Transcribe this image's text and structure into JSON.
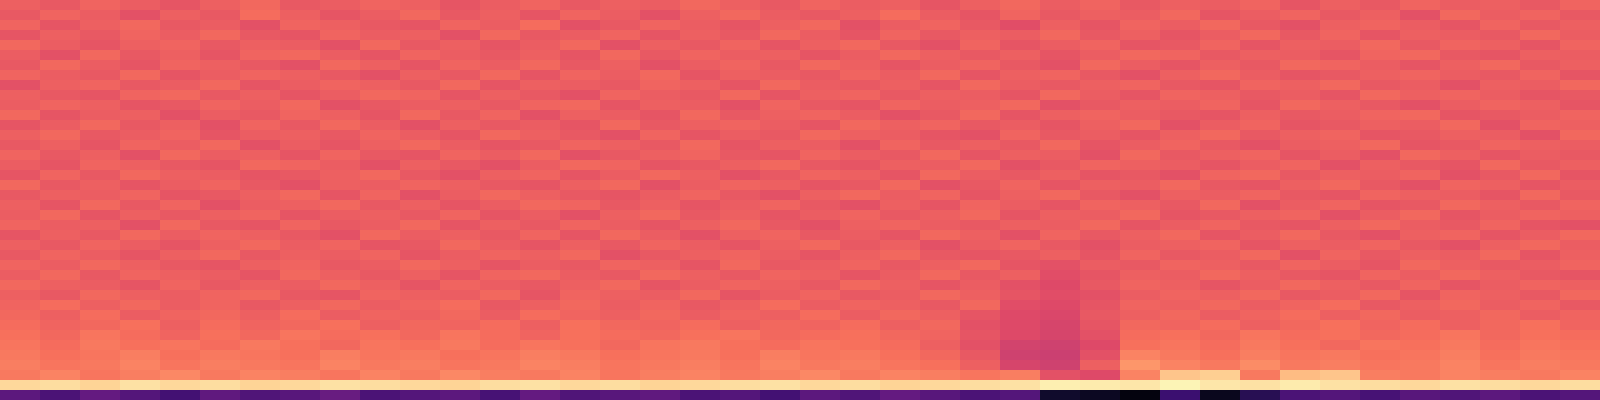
{
  "chart_data": {
    "type": "heatmap",
    "color": "magma",
    "tick_labels": false,
    "color_range": [
      0,
      100
    ],
    "cells": [
      [
        66,
        64,
        67,
        65,
        63,
        66,
        68,
        64,
        65,
        67,
        66,
        63,
        65,
        67,
        64,
        66,
        65,
        68,
        66,
        64,
        67,
        65,
        66,
        63,
        66,
        68,
        65,
        67,
        64,
        66,
        65,
        67,
        63,
        66,
        64,
        67,
        65,
        66,
        64,
        67
      ],
      [
        64,
        67,
        65,
        62,
        66,
        64,
        69,
        66,
        63,
        65,
        68,
        64,
        66,
        63,
        67,
        65,
        62,
        66,
        68,
        65,
        64,
        66,
        69,
        65,
        63,
        67,
        64,
        66,
        65,
        68,
        63,
        65,
        67,
        64,
        66,
        62,
        68,
        65,
        67,
        64
      ],
      [
        67,
        63,
        66,
        68,
        64,
        65,
        62,
        67,
        66,
        64,
        63,
        67,
        65,
        69,
        62,
        64,
        67,
        65,
        63,
        66,
        68,
        62,
        65,
        67,
        64,
        61,
        66,
        63,
        67,
        65,
        68,
        64,
        62,
        66,
        67,
        65,
        63,
        67,
        64,
        66
      ],
      [
        63,
        66,
        64,
        67,
        65,
        68,
        64,
        63,
        67,
        65,
        66,
        62,
        68,
        64,
        65,
        67,
        63,
        66,
        64,
        68,
        65,
        63,
        67,
        64,
        66,
        65,
        68,
        64,
        66,
        63,
        65,
        68,
        64,
        67,
        63,
        66,
        65,
        64,
        68,
        65
      ],
      [
        68,
        65,
        63,
        66,
        67,
        64,
        66,
        65,
        62,
        68,
        64,
        66,
        63,
        65,
        68,
        62,
        66,
        64,
        67,
        63,
        66,
        68,
        64,
        62,
        67,
        63,
        65,
        67,
        63,
        64,
        67,
        63,
        66,
        65,
        68,
        64,
        67,
        66,
        63,
        67
      ],
      [
        65,
        62,
        68,
        64,
        66,
        63,
        67,
        68,
        65,
        63,
        67,
        65,
        64,
        66,
        63,
        68,
        64,
        67,
        65,
        66,
        63,
        65,
        68,
        66,
        64,
        66,
        63,
        65,
        68,
        67,
        64,
        66,
        65,
        63,
        67,
        68,
        64,
        63,
        66,
        65
      ],
      [
        64,
        68,
        65,
        63,
        67,
        66,
        64,
        62,
        68,
        66,
        63,
        67,
        65,
        68,
        64,
        66,
        62,
        65,
        67,
        64,
        68,
        66,
        63,
        65,
        67,
        64,
        62,
        68,
        65,
        63,
        66,
        64,
        68,
        67,
        65,
        63,
        66,
        68,
        64,
        66
      ],
      [
        67,
        65,
        64,
        68,
        63,
        65,
        67,
        66,
        64,
        62,
        66,
        64,
        68,
        63,
        67,
        65,
        68,
        63,
        66,
        65,
        64,
        67,
        65,
        68,
        63,
        66,
        67,
        64,
        62,
        66,
        68,
        65,
        63,
        64,
        66,
        67,
        65,
        64,
        67,
        63
      ],
      [
        62,
        66,
        67,
        64,
        65,
        68,
        63,
        65,
        67,
        66,
        64,
        68,
        63,
        66,
        65,
        64,
        67,
        66,
        63,
        68,
        65,
        64,
        66,
        63,
        68,
        65,
        64,
        66,
        67,
        64,
        63,
        67,
        66,
        68,
        64,
        65,
        62,
        66,
        65,
        68
      ],
      [
        66,
        64,
        63,
        67,
        68,
        64,
        66,
        63,
        65,
        68,
        67,
        63,
        66,
        64,
        62,
        67,
        65,
        64,
        68,
        63,
        66,
        67,
        64,
        66,
        65,
        63,
        68,
        65,
        63,
        67,
        66,
        64,
        65,
        63,
        68,
        66,
        67,
        65,
        63,
        64
      ],
      [
        65,
        67,
        66,
        63,
        64,
        67,
        65,
        68,
        62,
        64,
        65,
        66,
        64,
        67,
        68,
        63,
        66,
        65,
        62,
        67,
        64,
        63,
        67,
        65,
        66,
        68,
        62,
        64,
        66,
        65,
        67,
        63,
        68,
        66,
        64,
        62,
        65,
        67,
        66,
        63
      ],
      [
        68,
        63,
        65,
        66,
        62,
        65,
        64,
        67,
        66,
        63,
        68,
        64,
        67,
        62,
        66,
        65,
        63,
        68,
        64,
        66,
        67,
        65,
        62,
        64,
        68,
        63,
        66,
        67,
        65,
        64,
        63,
        66,
        64,
        65,
        67,
        68,
        63,
        64,
        65,
        67
      ],
      [
        63,
        65,
        68,
        64,
        66,
        62,
        67,
        64,
        68,
        65,
        62,
        66,
        64,
        65,
        63,
        68,
        64,
        66,
        67,
        65,
        63,
        68,
        66,
        67,
        64,
        65,
        63,
        66,
        68,
        62,
        65,
        67,
        63,
        64,
        66,
        65,
        68,
        62,
        67,
        66
      ],
      [
        66,
        68,
        64,
        65,
        67,
        63,
        65,
        66,
        64,
        67,
        65,
        63,
        68,
        66,
        64,
        62,
        67,
        63,
        65,
        64,
        68,
        66,
        65,
        63,
        62,
        67,
        64,
        65,
        63,
        66,
        68,
        64,
        66,
        67,
        63,
        64,
        66,
        65,
        62,
        68
      ],
      [
        64,
        66,
        63,
        67,
        65,
        68,
        62,
        65,
        63,
        66,
        68,
        65,
        63,
        64,
        67,
        66,
        64,
        68,
        63,
        66,
        65,
        62,
        67,
        64,
        66,
        64,
        68,
        63,
        65,
        67,
        64,
        62,
        65,
        66,
        68,
        63,
        64,
        67,
        66,
        65
      ],
      [
        67,
        64,
        66,
        62,
        68,
        65,
        66,
        63,
        67,
        64,
        63,
        67,
        65,
        68,
        62,
        64,
        66,
        67,
        64,
        63,
        67,
        65,
        64,
        68,
        63,
        66,
        65,
        62,
        68,
        64,
        66,
        67,
        63,
        65,
        62,
        68,
        66,
        63,
        65,
        64
      ],
      [
        65,
        63,
        67,
        66,
        64,
        63,
        68,
        67,
        65,
        62,
        66,
        64,
        62,
        65,
        68,
        67,
        63,
        64,
        66,
        68,
        64,
        63,
        66,
        65,
        68,
        62,
        64,
        67,
        66,
        65,
        63,
        65,
        67,
        62,
        66,
        64,
        63,
        68,
        64,
        66
      ],
      [
        63,
        67,
        64,
        68,
        66,
        65,
        63,
        64,
        66,
        68,
        64,
        62,
        66,
        67,
        63,
        65,
        68,
        66,
        62,
        64,
        67,
        66,
        63,
        68,
        65,
        64,
        66,
        63,
        64,
        62,
        67,
        68,
        64,
        66,
        65,
        67,
        62,
        64,
        68,
        63
      ],
      [
        68,
        64,
        66,
        63,
        65,
        67,
        64,
        62,
        66,
        65,
        67,
        66,
        64,
        63,
        66,
        68,
        62,
        65,
        67,
        66,
        63,
        64,
        68,
        62,
        64,
        67,
        63,
        66,
        65,
        68,
        64,
        63,
        66,
        68,
        64,
        62,
        67,
        66,
        63,
        65
      ],
      [
        64,
        66,
        65,
        67,
        63,
        64,
        66,
        68,
        63,
        67,
        62,
        65,
        68,
        66,
        64,
        63,
        65,
        67,
        64,
        62,
        66,
        68,
        65,
        67,
        63,
        66,
        68,
        64,
        62,
        66,
        65,
        67,
        64,
        63,
        67,
        66,
        65,
        63,
        68,
        64
      ],
      [
        66,
        63,
        68,
        64,
        67,
        62,
        65,
        66,
        68,
        64,
        66,
        63,
        65,
        68,
        67,
        64,
        66,
        63,
        65,
        67,
        64,
        62,
        66,
        63,
        67,
        65,
        63,
        67,
        66,
        64,
        68,
        62,
        65,
        67,
        63,
        64,
        68,
        66,
        64,
        67
      ],
      [
        65,
        68,
        63,
        66,
        64,
        66,
        67,
        63,
        65,
        66,
        64,
        67,
        63,
        65,
        62,
        66,
        68,
        64,
        66,
        63,
        65,
        67,
        64,
        66,
        68,
        63,
        66,
        65,
        68,
        63,
        64,
        66,
        67,
        62,
        65,
        68,
        63,
        65,
        67,
        66
      ],
      [
        67,
        65,
        66,
        62,
        68,
        64,
        63,
        67,
        64,
        65,
        68,
        63,
        66,
        64,
        67,
        65,
        63,
        66,
        68,
        64,
        62,
        66,
        67,
        65,
        64,
        66,
        65,
        68,
        63,
        65,
        67,
        64,
        63,
        66,
        68,
        65,
        64,
        67,
        63,
        62
      ],
      [
        63,
        66,
        64,
        68,
        65,
        67,
        66,
        64,
        62,
        68,
        65,
        66,
        64,
        67,
        63,
        68,
        65,
        62,
        66,
        67,
        64,
        65,
        63,
        68,
        66,
        62,
        67,
        64,
        66,
        68,
        63,
        65,
        68,
        64,
        62,
        66,
        67,
        63,
        65,
        68
      ],
      [
        66,
        64,
        67,
        65,
        63,
        66,
        68,
        65,
        67,
        63,
        64,
        68,
        65,
        63,
        66,
        64,
        67,
        65,
        63,
        66,
        68,
        64,
        66,
        62,
        65,
        67,
        64,
        62,
        65,
        66,
        67,
        63,
        66,
        65,
        67,
        64,
        62,
        66,
        68,
        65
      ],
      [
        64,
        67,
        65,
        63,
        66,
        68,
        64,
        66,
        65,
        67,
        63,
        65,
        67,
        66,
        68,
        62,
        64,
        66,
        67,
        65,
        63,
        66,
        68,
        64,
        63,
        64,
        66,
        63,
        67,
        64,
        65,
        68,
        62,
        67,
        64,
        66,
        65,
        68,
        63,
        66
      ],
      [
        67,
        65,
        68,
        66,
        64,
        63,
        66,
        67,
        64,
        65,
        68,
        66,
        63,
        65,
        64,
        67,
        66,
        63,
        68,
        64,
        65,
        67,
        64,
        66,
        68,
        63,
        62,
        65,
        64,
        67,
        66,
        64,
        67,
        65,
        63,
        68,
        66,
        64,
        65,
        67
      ],
      [
        65,
        68,
        64,
        67,
        66,
        65,
        63,
        68,
        66,
        64,
        66,
        63,
        67,
        68,
        65,
        64,
        68,
        66,
        64,
        67,
        66,
        63,
        65,
        68,
        64,
        66,
        61,
        63,
        66,
        65,
        68,
        66,
        64,
        63,
        67,
        65,
        68,
        66,
        64,
        63
      ],
      [
        68,
        66,
        65,
        63,
        67,
        64,
        66,
        65,
        68,
        66,
        63,
        67,
        65,
        64,
        66,
        68,
        63,
        65,
        67,
        66,
        64,
        68,
        66,
        63,
        65,
        62,
        60,
        64,
        67,
        66,
        63,
        65,
        68,
        66,
        64,
        67,
        63,
        65,
        67,
        66
      ],
      [
        66,
        64,
        68,
        66,
        65,
        67,
        68,
        64,
        63,
        67,
        66,
        65,
        68,
        63,
        67,
        66,
        65,
        68,
        63,
        65,
        67,
        64,
        65,
        68,
        66,
        63,
        61,
        62,
        65,
        67,
        66,
        68,
        64,
        65,
        68,
        63,
        67,
        66,
        64,
        68
      ],
      [
        67,
        69,
        66,
        68,
        65,
        67,
        64,
        66,
        68,
        65,
        67,
        69,
        64,
        66,
        68,
        65,
        67,
        64,
        66,
        69,
        65,
        67,
        66,
        64,
        68,
        61,
        60,
        63,
        67,
        66,
        68,
        65,
        67,
        69,
        64,
        66,
        68,
        65,
        67,
        64
      ],
      [
        68,
        66,
        69,
        65,
        67,
        68,
        66,
        69,
        65,
        67,
        66,
        68,
        65,
        69,
        67,
        66,
        68,
        65,
        67,
        66,
        69,
        65,
        68,
        66,
        63,
        60,
        59,
        64,
        66,
        68,
        65,
        67,
        69,
        66,
        68,
        65,
        66,
        68,
        65,
        67
      ],
      [
        69,
        67,
        68,
        70,
        66,
        69,
        67,
        68,
        70,
        66,
        68,
        67,
        69,
        66,
        70,
        68,
        67,
        69,
        66,
        68,
        67,
        69,
        66,
        68,
        62,
        60,
        58,
        63,
        68,
        67,
        69,
        66,
        68,
        70,
        67,
        69,
        66,
        68,
        70,
        67
      ],
      [
        70,
        68,
        71,
        69,
        67,
        70,
        68,
        71,
        69,
        70,
        68,
        71,
        69,
        67,
        70,
        69,
        68,
        70,
        71,
        68,
        69,
        70,
        68,
        67,
        63,
        60,
        58,
        62,
        69,
        70,
        68,
        71,
        69,
        70,
        68,
        69,
        71,
        68,
        70,
        69
      ],
      [
        71,
        69,
        72,
        70,
        71,
        69,
        72,
        70,
        68,
        71,
        70,
        72,
        69,
        71,
        70,
        68,
        71,
        72,
        70,
        69,
        71,
        70,
        69,
        66,
        62,
        57,
        56,
        60,
        70,
        71,
        69,
        72,
        70,
        68,
        71,
        70,
        72,
        69,
        71,
        70
      ],
      [
        72,
        70,
        71,
        73,
        70,
        72,
        71,
        70,
        73,
        71,
        72,
        70,
        71,
        73,
        72,
        70,
        71,
        72,
        70,
        73,
        71,
        72,
        70,
        68,
        64,
        56,
        55,
        62,
        74,
        72,
        70,
        73,
        71,
        72,
        70,
        71,
        73,
        70,
        72,
        71
      ],
      [
        73,
        71,
        72,
        74,
        71,
        73,
        72,
        71,
        74,
        72,
        73,
        71,
        72,
        74,
        73,
        71,
        72,
        73,
        71,
        74,
        72,
        73,
        71,
        70,
        66,
        58,
        56,
        66,
        78,
        74,
        72,
        76,
        72,
        73,
        71,
        72,
        74,
        71,
        73,
        72
      ],
      [
        72,
        74,
        71,
        73,
        75,
        72,
        74,
        73,
        71,
        74,
        72,
        75,
        73,
        72,
        74,
        71,
        73,
        74,
        72,
        73,
        75,
        72,
        74,
        73,
        71,
        73,
        62,
        60,
        74,
        88,
        90,
        72,
        86,
        88,
        73,
        72,
        74,
        73,
        72,
        74
      ],
      [
        92,
        93,
        91,
        94,
        92,
        93,
        91,
        92,
        94,
        93,
        92,
        91,
        93,
        94,
        92,
        93,
        91,
        92,
        93,
        94,
        92,
        93,
        91,
        92,
        93,
        94,
        97,
        96,
        95,
        98,
        95,
        94,
        96,
        94,
        93,
        92,
        94,
        93,
        92,
        93
      ],
      [
        28,
        24,
        30,
        26,
        22,
        29,
        25,
        27,
        31,
        24,
        26,
        28,
        23,
        30,
        25,
        27,
        29,
        24,
        26,
        22,
        28,
        25,
        30,
        27,
        24,
        26,
        8,
        6,
        2,
        20,
        5,
        15,
        24,
        26,
        23,
        27,
        25,
        28,
        24,
        26
      ]
    ]
  }
}
